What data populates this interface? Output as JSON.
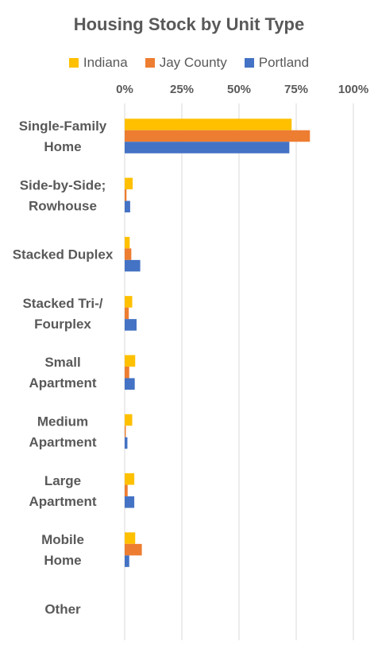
{
  "chart_data": {
    "type": "bar",
    "orientation": "horizontal",
    "title": "Housing Stock by Unit Type",
    "xlabel": "",
    "ylabel": "",
    "xlim": [
      0,
      100
    ],
    "x_ticks": [
      "0%",
      "25%",
      "50%",
      "75%",
      "100%"
    ],
    "x_axis_position": "top",
    "grid": true,
    "legend_position": "top",
    "categories": [
      "Single-Family Home",
      "Side-by-Side; Rowhouse",
      "Stacked Duplex",
      "Stacked Tri-/ Fourplex",
      "Small Apartment",
      "Medium Apartment",
      "Large Apartment",
      "Mobile Home",
      "Other"
    ],
    "category_label_lines": [
      [
        "Single-Family",
        "Home"
      ],
      [
        "Side-by-Side;",
        "Rowhouse"
      ],
      [
        "Stacked Duplex"
      ],
      [
        "Stacked Tri-/",
        "Fourplex"
      ],
      [
        "Small",
        "Apartment"
      ],
      [
        "Medium",
        "Apartment"
      ],
      [
        "Large",
        "Apartment"
      ],
      [
        "Mobile",
        "Home"
      ],
      [
        "Other"
      ]
    ],
    "series": [
      {
        "name": "Indiana",
        "color": "#FFC000",
        "values": [
          73,
          3.5,
          2.2,
          3.3,
          4.6,
          3.3,
          4.2,
          4.6,
          0
        ]
      },
      {
        "name": "Jay County",
        "color": "#ED7D31",
        "values": [
          81,
          0.8,
          2.9,
          1.8,
          2.0,
          0.5,
          1.3,
          7.5,
          0
        ]
      },
      {
        "name": "Portland",
        "color": "#4472C4",
        "values": [
          72,
          2.4,
          6.8,
          5.2,
          4.4,
          1.2,
          4.2,
          2.0,
          0
        ]
      }
    ]
  }
}
